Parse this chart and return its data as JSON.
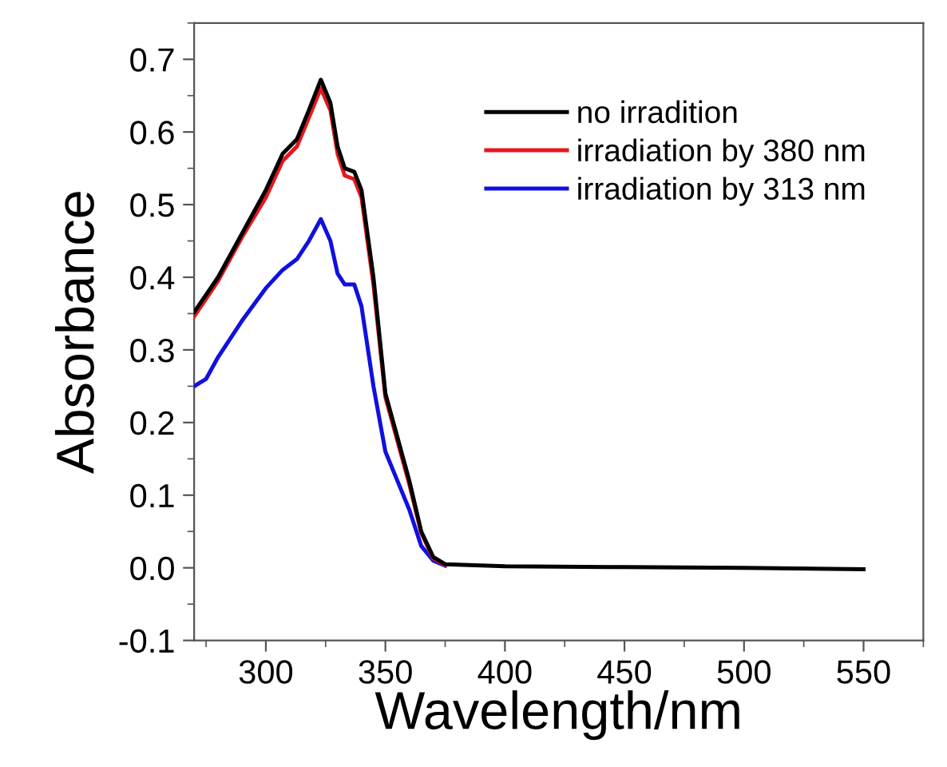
{
  "chart_data": {
    "type": "line",
    "xlabel": "Wavelength/nm",
    "ylabel": "Absorbance",
    "xlim": [
      270,
      575
    ],
    "xticks": [
      300,
      350,
      400,
      450,
      500,
      550
    ],
    "ylim": [
      -0.1,
      0.75
    ],
    "yticks": [
      -0.1,
      {
        "value": 0,
        "label": "0.0"
      },
      0.1,
      0.2,
      0.3,
      0.4,
      0.5,
      0.6,
      0.7
    ],
    "legend": "top right",
    "grid": false,
    "line_style": "solid",
    "marker": "none",
    "series": [
      {
        "name": "no irradition",
        "color": "#000000",
        "x": [
          270,
          280,
          290,
          300,
          307,
          313,
          318,
          323,
          327,
          330,
          333,
          337,
          340,
          345,
          350,
          355,
          360,
          365,
          370,
          375,
          400,
          450,
          500,
          550
        ],
        "values": [
          0.352,
          0.4,
          0.46,
          0.52,
          0.57,
          0.59,
          0.63,
          0.672,
          0.64,
          0.58,
          0.55,
          0.545,
          0.52,
          0.4,
          0.24,
          0.18,
          0.12,
          0.05,
          0.015,
          0.005,
          0.002,
          0.001,
          0.0,
          -0.002
        ]
      },
      {
        "name": "irradiation by 380 nm",
        "color": "#e8161b",
        "x": [
          270,
          280,
          290,
          300,
          307,
          313,
          318,
          323,
          327,
          330,
          333,
          337,
          340,
          345,
          350,
          355,
          360,
          365,
          370,
          375
        ],
        "values": [
          0.346,
          0.395,
          0.455,
          0.51,
          0.56,
          0.58,
          0.62,
          0.66,
          0.63,
          0.57,
          0.54,
          0.535,
          0.51,
          0.39,
          0.235,
          0.175,
          0.115,
          0.048,
          0.013,
          0.004
        ]
      },
      {
        "name": "irradiation by 313 nm",
        "color": "#1010e0",
        "x": [
          270,
          275,
          280,
          290,
          300,
          307,
          313,
          318,
          323,
          327,
          330,
          333,
          337,
          340,
          345,
          350,
          355,
          360,
          365,
          370,
          375
        ],
        "values": [
          0.25,
          0.26,
          0.29,
          0.34,
          0.385,
          0.41,
          0.425,
          0.45,
          0.48,
          0.45,
          0.405,
          0.39,
          0.39,
          0.36,
          0.25,
          0.16,
          0.12,
          0.08,
          0.03,
          0.01,
          0.003
        ]
      }
    ]
  }
}
